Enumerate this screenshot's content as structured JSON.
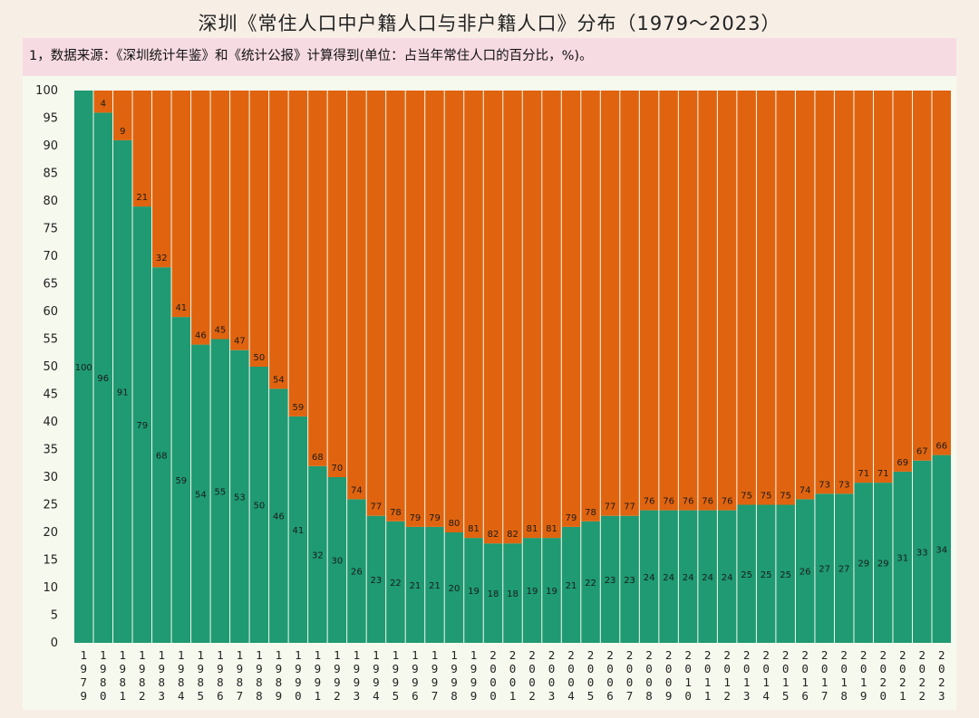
{
  "title": "深圳《常住人口中户籍人口与非户籍人口》分布（1979～2023）",
  "note": "1，数据来源：《深圳统计年鉴》和《统计公报》计算得到(单位：占当年常住人口的百分比，%)。",
  "colors": {
    "registered": "#1f9a72",
    "non_registered": "#e0640f",
    "background": "#f7efe6",
    "note_band": "#f7dbe3"
  },
  "chart_data": {
    "type": "bar",
    "stacked": true,
    "title": "深圳《常住人口中户籍人口与非户籍人口》分布（1979～2023）",
    "xlabel": "",
    "ylabel": "",
    "ylim": [
      0,
      100
    ],
    "yticks": [
      0,
      5,
      10,
      15,
      20,
      25,
      30,
      35,
      40,
      45,
      50,
      55,
      60,
      65,
      70,
      75,
      80,
      85,
      90,
      95,
      100
    ],
    "grid": false,
    "legend": "none",
    "categories": [
      "1979",
      "1980",
      "1981",
      "1982",
      "1983",
      "1984",
      "1985",
      "1986",
      "1987",
      "1988",
      "1989",
      "1990",
      "1991",
      "1992",
      "1993",
      "1994",
      "1995",
      "1996",
      "1997",
      "1998",
      "1999",
      "2000",
      "2001",
      "2002",
      "2003",
      "2004",
      "2005",
      "2006",
      "2007",
      "2008",
      "2009",
      "2010",
      "2011",
      "2012",
      "2013",
      "2014",
      "2015",
      "2016",
      "2017",
      "2018",
      "2019",
      "2020",
      "2021",
      "2022",
      "2023"
    ],
    "series": [
      {
        "values": [
          100,
          96,
          91,
          79,
          68,
          59,
          54,
          55,
          53,
          50,
          46,
          41,
          32,
          30,
          26,
          23,
          22,
          21,
          21,
          20,
          19,
          18,
          18,
          19,
          19,
          21,
          22,
          23,
          23,
          24,
          24,
          24,
          24,
          24,
          25,
          25,
          25,
          26,
          27,
          27,
          29,
          29,
          31,
          33,
          34
        ]
      },
      {
        "values": [
          0,
          4,
          9,
          21,
          32,
          41,
          46,
          45,
          47,
          50,
          54,
          59,
          68,
          70,
          74,
          77,
          78,
          79,
          79,
          80,
          81,
          82,
          82,
          81,
          81,
          79,
          78,
          77,
          77,
          76,
          76,
          76,
          76,
          76,
          75,
          75,
          75,
          74,
          73,
          73,
          71,
          71,
          69,
          67,
          66
        ]
      }
    ]
  }
}
